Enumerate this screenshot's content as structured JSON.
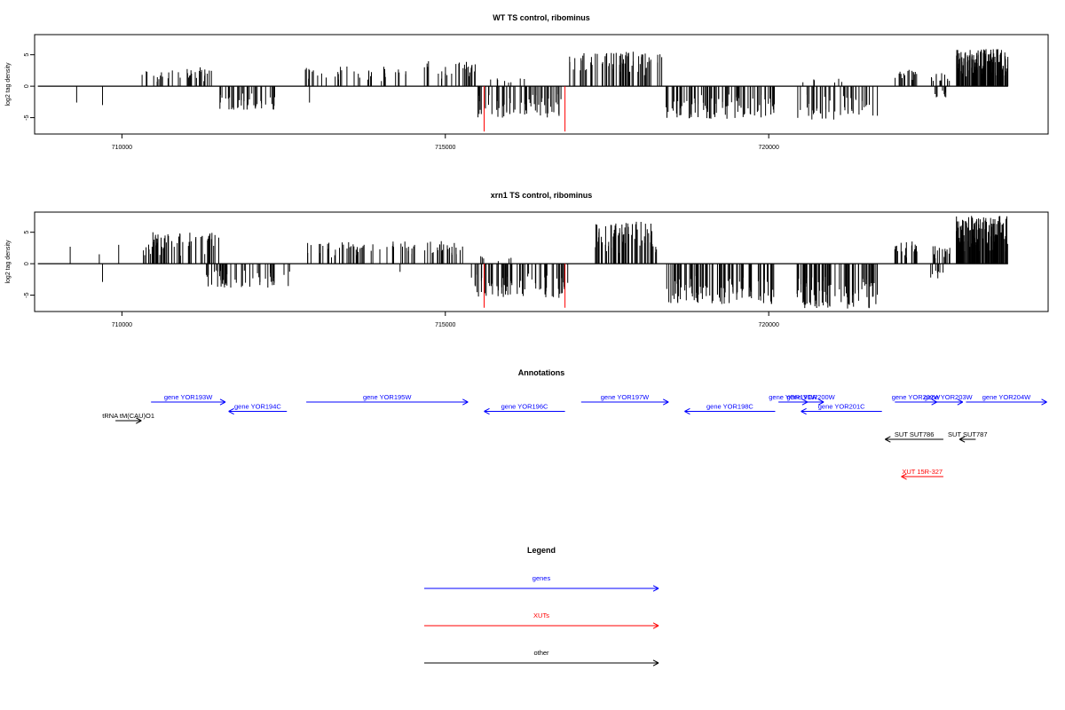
{
  "chart_data": [
    {
      "type": "bar",
      "title": "WT TS control, ribominus",
      "xlabel": "",
      "ylabel": "log2 tag density",
      "xlim": [
        708650,
        724320
      ],
      "ylim": [
        -7.6,
        8.2
      ],
      "x_ticks": [
        710000,
        715000,
        720000
      ],
      "x_tick_labels": [
        "710000",
        "715000",
        "720000"
      ],
      "y_ticks": [
        -5,
        0,
        5
      ],
      "y_tick_labels": [
        "-5",
        "0",
        "5"
      ],
      "baseline": {
        "from": 708700,
        "to": 723700
      },
      "colors": {
        "signal": "#000000",
        "highlight": "#ff0000"
      },
      "signal_regions": [
        {
          "from": 710300,
          "to": 710900,
          "sign": 1,
          "max": 2.5,
          "density": 16,
          "seed": 1
        },
        {
          "from": 711000,
          "to": 711400,
          "sign": 1,
          "max": 3.0,
          "density": 22,
          "seed": 2
        },
        {
          "from": 711500,
          "to": 712400,
          "sign": -1,
          "max": 3.8,
          "density": 40,
          "seed": 3
        },
        {
          "from": 712800,
          "to": 714500,
          "sign": 1,
          "max": 3.2,
          "density": 35,
          "seed": 4
        },
        {
          "from": 714600,
          "to": 715500,
          "sign": 1,
          "max": 4.0,
          "density": 28,
          "seed": 5
        },
        {
          "from": 715500,
          "to": 716800,
          "sign": -1,
          "max": 5.0,
          "density": 60,
          "seed": 6
        },
        {
          "from": 715650,
          "to": 716300,
          "sign": 1,
          "max": 1.5,
          "density": 8,
          "seed": 7
        },
        {
          "from": 716900,
          "to": 718400,
          "sign": 1,
          "max": 5.5,
          "density": 70,
          "seed": 8
        },
        {
          "from": 718400,
          "to": 720100,
          "sign": -1,
          "max": 5.2,
          "density": 90,
          "seed": 9
        },
        {
          "from": 720400,
          "to": 721700,
          "sign": -1,
          "max": 5.3,
          "density": 45,
          "seed": 10
        },
        {
          "from": 720450,
          "to": 721200,
          "sign": 1,
          "max": 1.2,
          "density": 6,
          "seed": 11
        },
        {
          "from": 721950,
          "to": 722300,
          "sign": 1,
          "max": 2.6,
          "density": 18,
          "seed": 12
        },
        {
          "from": 722500,
          "to": 722800,
          "sign": 1,
          "max": 2.2,
          "density": 12,
          "seed": 13
        },
        {
          "from": 722500,
          "to": 722750,
          "sign": -1,
          "max": 2.0,
          "density": 8,
          "seed": 14
        },
        {
          "from": 722900,
          "to": 723700,
          "sign": 1,
          "max": 5.9,
          "density": 140,
          "seed": 15
        }
      ],
      "spikes": [
        {
          "x": 709300,
          "y": -2.6
        },
        {
          "x": 709700,
          "y": -3.0
        },
        {
          "x": 712900,
          "y": -2.6
        },
        {
          "x": 715600,
          "y": -7.2,
          "color": "highlight"
        },
        {
          "x": 716850,
          "y": -7.2,
          "color": "highlight"
        }
      ]
    },
    {
      "type": "bar",
      "title": "xrn1 TS control, ribominus",
      "xlabel": "",
      "ylabel": "log2 tag density",
      "xlim": [
        708650,
        724320
      ],
      "ylim": [
        -7.6,
        8.2
      ],
      "x_ticks": [
        710000,
        715000,
        720000
      ],
      "x_tick_labels": [
        "710000",
        "715000",
        "720000"
      ],
      "y_ticks": [
        -5,
        0,
        5
      ],
      "y_tick_labels": [
        "-5",
        "0",
        "5"
      ],
      "baseline": {
        "from": 708700,
        "to": 723700
      },
      "colors": {
        "signal": "#000000",
        "highlight": "#ff0000"
      },
      "signal_regions": [
        {
          "from": 710300,
          "to": 711500,
          "sign": 1,
          "max": 5.0,
          "density": 60,
          "seed": 21
        },
        {
          "from": 711300,
          "to": 712600,
          "sign": -1,
          "max": 3.8,
          "density": 50,
          "seed": 22
        },
        {
          "from": 712800,
          "to": 715300,
          "sign": 1,
          "max": 3.6,
          "density": 75,
          "seed": 23
        },
        {
          "from": 715400,
          "to": 716900,
          "sign": -1,
          "max": 5.5,
          "density": 70,
          "seed": 24
        },
        {
          "from": 715500,
          "to": 716300,
          "sign": 1,
          "max": 1.2,
          "density": 6,
          "seed": 25
        },
        {
          "from": 717300,
          "to": 718300,
          "sign": 1,
          "max": 6.7,
          "density": 70,
          "seed": 26
        },
        {
          "from": 718400,
          "to": 720100,
          "sign": -1,
          "max": 6.4,
          "density": 95,
          "seed": 27
        },
        {
          "from": 720400,
          "to": 721700,
          "sign": -1,
          "max": 7.2,
          "density": 90,
          "seed": 28
        },
        {
          "from": 721950,
          "to": 722300,
          "sign": 1,
          "max": 3.6,
          "density": 22,
          "seed": 29
        },
        {
          "from": 722500,
          "to": 722800,
          "sign": 1,
          "max": 3.0,
          "density": 14,
          "seed": 30
        },
        {
          "from": 722500,
          "to": 722700,
          "sign": -1,
          "max": 2.5,
          "density": 8,
          "seed": 31
        },
        {
          "from": 722900,
          "to": 723700,
          "sign": 1,
          "max": 7.6,
          "density": 150,
          "seed": 32
        }
      ],
      "spikes": [
        {
          "x": 709200,
          "y": 2.7
        },
        {
          "x": 709650,
          "y": 1.5
        },
        {
          "x": 709700,
          "y": -2.9
        },
        {
          "x": 709950,
          "y": 3.0
        },
        {
          "x": 714300,
          "y": -1.3
        },
        {
          "x": 715600,
          "y": -7.0,
          "color": "highlight"
        },
        {
          "x": 716850,
          "y": -7.0,
          "color": "highlight"
        }
      ]
    }
  ],
  "annotations": {
    "title": "Annotations",
    "colors": {
      "gene": "#0000ff",
      "xut": "#ff0000",
      "other": "#000000"
    },
    "items": [
      {
        "label": "gene YOR193W",
        "kind": "gene",
        "row": 0,
        "from": 710450,
        "to": 711600,
        "dir": "right"
      },
      {
        "label": "gene YOR194C",
        "kind": "gene",
        "row": 1,
        "from": 711650,
        "to": 712550,
        "dir": "left"
      },
      {
        "label": "gene YOR195W",
        "kind": "gene",
        "row": 0,
        "from": 712850,
        "to": 715350,
        "dir": "right"
      },
      {
        "label": "gene YOR196C",
        "kind": "gene",
        "row": 1,
        "from": 715600,
        "to": 716850,
        "dir": "left"
      },
      {
        "label": "gene YOR197W",
        "kind": "gene",
        "row": 0,
        "from": 717100,
        "to": 718450,
        "dir": "right"
      },
      {
        "label": "gene YOR198C",
        "kind": "gene",
        "row": 1,
        "from": 718700,
        "to": 720100,
        "dir": "left"
      },
      {
        "label": "gene YOR199W",
        "kind": "gene",
        "row": 0,
        "from": 720150,
        "to": 720600,
        "dir": "right"
      },
      {
        "label": "gene YOR200W",
        "kind": "gene",
        "row": 0,
        "from": 720450,
        "to": 720850,
        "dir": "right"
      },
      {
        "label": "gene YOR201C",
        "kind": "gene",
        "row": 1,
        "from": 720500,
        "to": 721750,
        "dir": "left"
      },
      {
        "label": "gene YOR202W",
        "kind": "gene",
        "row": 0,
        "from": 721950,
        "to": 722600,
        "dir": "right"
      },
      {
        "label": "gene YOR203W",
        "kind": "gene",
        "row": 0,
        "from": 722550,
        "to": 723000,
        "dir": "right"
      },
      {
        "label": "gene YOR204W",
        "kind": "gene",
        "row": 0,
        "from": 723050,
        "to": 724300,
        "dir": "right"
      },
      {
        "label": "tRNA tM(CAU)O1",
        "kind": "other",
        "row": 2,
        "from": 709900,
        "to": 710300,
        "dir": "right"
      },
      {
        "label": "SUT SUT786",
        "kind": "other",
        "row": 4,
        "from": 721800,
        "to": 722700,
        "dir": "left"
      },
      {
        "label": "SUT SUT787",
        "kind": "other",
        "row": 4,
        "from": 722950,
        "to": 723200,
        "dir": "left"
      },
      {
        "label": "XUT 15R-327",
        "kind": "xut",
        "row": 8,
        "from": 722050,
        "to": 722700,
        "dir": "left"
      }
    ]
  },
  "legend": {
    "title": "Legend",
    "entries": [
      {
        "label": "genes",
        "kind": "gene"
      },
      {
        "label": "XUTs",
        "kind": "xut"
      },
      {
        "label": "other",
        "kind": "other"
      }
    ]
  }
}
